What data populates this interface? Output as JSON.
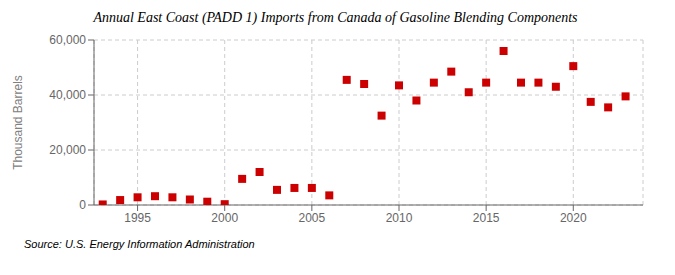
{
  "chart_data": {
    "type": "scatter",
    "title": "Annual East Coast (PADD 1) Imports from Canada of Gasoline Blending Components",
    "y_label": "Thousand Barrels",
    "annotations": [
      "Source: U.S. Energy Information Administration"
    ],
    "x": [
      1993,
      1994,
      1995,
      1996,
      1997,
      1998,
      1999,
      2000,
      2001,
      2002,
      2003,
      2004,
      2005,
      2006,
      2007,
      2008,
      2009,
      2010,
      2011,
      2012,
      2013,
      2014,
      2015,
      2016,
      2017,
      2018,
      2019,
      2020,
      2021,
      2022,
      2023
    ],
    "values": [
      200,
      1800,
      2800,
      3200,
      2800,
      2000,
      1200,
      300,
      9500,
      12000,
      5500,
      6200,
      6200,
      3500,
      45500,
      44000,
      32500,
      43500,
      38000,
      44500,
      48500,
      41000,
      44500,
      56000,
      44500,
      44500,
      43000,
      50500,
      37500,
      35500,
      39500
    ],
    "color": "#cc0000",
    "marker": "square",
    "xlim": [
      1992.5,
      2024
    ],
    "xticks": [
      1995,
      2000,
      2005,
      2010,
      2015,
      2020
    ],
    "ylim": [
      0,
      60000
    ],
    "yticks": [
      0,
      {
        "value": 20000,
        "label": "20,000"
      },
      {
        "value": 40000,
        "label": "40,000"
      },
      {
        "value": 60000,
        "label": "60,000"
      }
    ],
    "grid": true
  }
}
